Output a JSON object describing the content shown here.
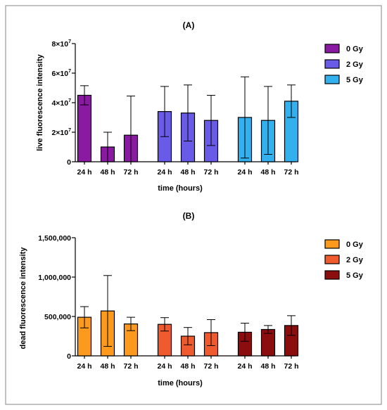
{
  "chart_data": [
    {
      "type": "bar",
      "title": "(A)",
      "ylabel": "live fluorescence intensity",
      "xlabel": "time (hours)",
      "ylim": [
        0,
        80000000
      ],
      "yticks": [
        0,
        20000000,
        40000000,
        60000000,
        80000000
      ],
      "ytick_mantissas": [
        "0",
        "2",
        "4",
        "6",
        "8"
      ],
      "ytick_base": "×10",
      "ytick_exponent": "7",
      "categories": [
        "24 h",
        "48 h",
        "72 h"
      ],
      "series": [
        {
          "name": "0 Gy",
          "color": "#8b1aa3",
          "values": [
            45000000,
            10000000,
            18000000
          ],
          "errors": [
            6500000,
            10000000,
            26500000
          ]
        },
        {
          "name": "2 Gy",
          "color": "#6a5ae8",
          "values": [
            34000000,
            33000000,
            28000000
          ],
          "errors": [
            17000000,
            19000000,
            17000000
          ]
        },
        {
          "name": "5 Gy",
          "color": "#33b0ee",
          "values": [
            30000000,
            28000000,
            41000000
          ],
          "errors": [
            27500000,
            23000000,
            11000000
          ]
        }
      ],
      "legend_position": "top-right",
      "grid": false
    },
    {
      "type": "bar",
      "title": "(B)",
      "ylabel": "dead fluorescence intensity",
      "xlabel": "time (hours)",
      "ylim": [
        0,
        1500000
      ],
      "yticks": [
        0,
        500000,
        1000000,
        1500000
      ],
      "ytick_labels": [
        "0",
        "500,000",
        "1,000,000",
        "1,500,000"
      ],
      "categories": [
        "24 h",
        "48 h",
        "72 h"
      ],
      "series": [
        {
          "name": "0 Gy",
          "color": "#fb9a1c",
          "values": [
            490000,
            570000,
            405000
          ],
          "errors": [
            135000,
            450000,
            85000
          ]
        },
        {
          "name": "2 Gy",
          "color": "#ef5a2f",
          "values": [
            400000,
            250000,
            295000
          ],
          "errors": [
            85000,
            110000,
            165000
          ]
        },
        {
          "name": "5 Gy",
          "color": "#8b0d0d",
          "values": [
            300000,
            335000,
            385000
          ],
          "errors": [
            115000,
            50000,
            125000
          ]
        }
      ],
      "legend_position": "top-right",
      "grid": false
    }
  ]
}
